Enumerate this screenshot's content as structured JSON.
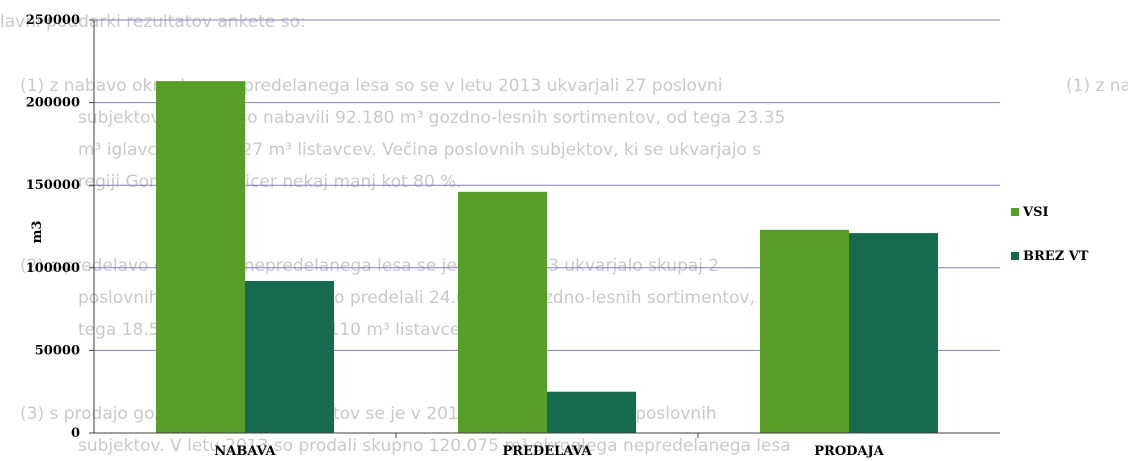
{
  "background_text": [
    "lavni poudarki rezultatov ankete so:",
    "(1) z nabavo okroglega nepredelanega lesa so se v letu 2013 ukvarjali 27 poslovni",
    "subjektov. Skupno so nabavili 92.180 m³ gozdno-lesnih sortimentov, od tega 23.35",
    "m³ iglavcev in 63.927 m³ listavcev. Večina poslovnih subjektov, ki se ukvarjajo s",
    "regiji Gorenjske in sicer nekaj manj kot 80 %.",
    "(2) s predelavo okroglega nepredelanega lesa se je v letu 2013 ukvarjalo skupaj 2",
    "poslovnih subjektov. Skupno so predelali 24.647 m³ gozdno-lesnih sortimentov, o",
    "tega 18.537 m³ iglavcev in 6.110 m³ listavcev.",
    "(3) s prodajo gozdno-lesnih sortimentov se je v 2013 ukvarjalo skupaj 9 poslovnih",
    "subjektov. V letu 2013 so prodali skupno 120.075 m³ okroglega nepredelanega lesa"
  ],
  "chart_data": {
    "type": "bar",
    "title": "",
    "xlabel": "",
    "ylabel": "m3",
    "categories": [
      "NABAVA",
      "PREDELAVA",
      "PRODAJA"
    ],
    "series": [
      {
        "name": "VSI",
        "values": [
          213000,
          146000,
          123000
        ],
        "color": "#5a9e2a"
      },
      {
        "name": "BREZ VT",
        "values": [
          92000,
          25000,
          121000
        ],
        "color": "#146b4f"
      }
    ],
    "ylim": [
      0,
      250000
    ],
    "yticks": [
      0,
      50000,
      100000,
      150000,
      200000,
      250000
    ],
    "ytick_labels": [
      "0",
      "50000",
      "100000",
      "150000",
      "200000",
      "250000"
    ],
    "grid": true,
    "legend_position": "right"
  },
  "colors": {
    "gridline": "#8080c0",
    "axis": "#404040"
  }
}
